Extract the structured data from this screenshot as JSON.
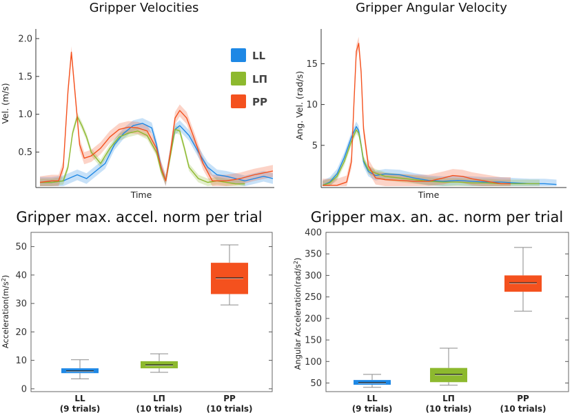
{
  "chart_data": [
    {
      "id": "vel",
      "type": "line",
      "title": "Gripper Velocities",
      "xlabel": "Time",
      "ylabel": "Vel. (m/s)",
      "ylim": [
        0.05,
        2.1
      ],
      "yticks": [
        "0.5",
        "1.0",
        "1.5",
        "2.0"
      ],
      "ytick_values": [
        0.5,
        1.0,
        1.5,
        2.0
      ],
      "xlim": [
        0,
        1
      ],
      "legend_position": "top-right",
      "series": [
        {
          "name": "LL",
          "color": "#1E88E5",
          "band": 0.07,
          "x": [
            0,
            0.05,
            0.1,
            0.13,
            0.16,
            0.2,
            0.24,
            0.28,
            0.32,
            0.36,
            0.4,
            0.44,
            0.48,
            0.5,
            0.52,
            0.54,
            0.56,
            0.58,
            0.6,
            0.64,
            0.68,
            0.72,
            0.76,
            0.8,
            0.84,
            0.88,
            0.92,
            0.96,
            1.0
          ],
          "y": [
            0.1,
            0.1,
            0.12,
            0.16,
            0.2,
            0.15,
            0.25,
            0.35,
            0.6,
            0.75,
            0.85,
            0.88,
            0.82,
            0.6,
            0.3,
            0.12,
            0.5,
            0.8,
            0.85,
            0.72,
            0.5,
            0.3,
            0.2,
            0.18,
            0.15,
            0.12,
            0.15,
            0.18,
            0.15
          ]
        },
        {
          "name": "LΠ",
          "color": "#8DB92E",
          "band": 0.05,
          "x": [
            0,
            0.05,
            0.1,
            0.12,
            0.14,
            0.16,
            0.18,
            0.2,
            0.22,
            0.26,
            0.3,
            0.34,
            0.38,
            0.42,
            0.46,
            0.5,
            0.52,
            0.54,
            0.56,
            0.58,
            0.6,
            0.62,
            0.64,
            0.68,
            0.72,
            0.76,
            0.8,
            0.84,
            0.88
          ],
          "y": [
            0.1,
            0.1,
            0.12,
            0.3,
            0.75,
            0.97,
            0.85,
            0.7,
            0.5,
            0.35,
            0.55,
            0.7,
            0.75,
            0.78,
            0.72,
            0.5,
            0.25,
            0.12,
            0.45,
            0.8,
            0.78,
            0.55,
            0.3,
            0.15,
            0.1,
            0.12,
            0.1,
            0.08,
            0.08
          ]
        },
        {
          "name": "PP",
          "color": "#F4511E",
          "band": 0.08,
          "x": [
            0,
            0.05,
            0.08,
            0.1,
            0.12,
            0.135,
            0.15,
            0.17,
            0.19,
            0.22,
            0.26,
            0.3,
            0.34,
            0.38,
            0.42,
            0.46,
            0.5,
            0.52,
            0.54,
            0.56,
            0.58,
            0.6,
            0.63,
            0.66,
            0.7,
            0.74,
            0.8,
            0.86,
            0.92,
            1.0
          ],
          "y": [
            0.1,
            0.12,
            0.12,
            0.3,
            1.3,
            1.82,
            1.3,
            0.6,
            0.42,
            0.45,
            0.55,
            0.7,
            0.8,
            0.83,
            0.82,
            0.78,
            0.55,
            0.3,
            0.12,
            0.5,
            0.95,
            1.05,
            0.95,
            0.7,
            0.35,
            0.12,
            0.12,
            0.15,
            0.2,
            0.25
          ]
        }
      ]
    },
    {
      "id": "angvel",
      "type": "line",
      "title": "Gripper Angular Velocity",
      "xlabel": "Time",
      "ylabel": "Ang. Vel. (rad/s)",
      "ylim": [
        0,
        19
      ],
      "yticks": [
        "5",
        "10",
        "15"
      ],
      "ytick_values": [
        5,
        10,
        15
      ],
      "xlim": [
        0,
        1
      ],
      "series": [
        {
          "name": "LL",
          "color": "#1E88E5",
          "band": 0.6,
          "x": [
            0,
            0.03,
            0.06,
            0.09,
            0.12,
            0.14,
            0.15,
            0.16,
            0.17,
            0.19,
            0.22,
            0.26,
            0.32,
            0.38,
            0.44,
            0.5,
            0.56,
            0.62,
            0.68,
            0.74,
            0.8,
            0.86,
            0.92,
            0.97
          ],
          "y": [
            0.1,
            0.5,
            1.5,
            3.5,
            6.0,
            7.3,
            6.8,
            5.0,
            3.0,
            1.8,
            1.3,
            1.5,
            1.4,
            1.0,
            0.7,
            0.6,
            0.7,
            0.6,
            0.5,
            0.5,
            0.4,
            0.3,
            0.3,
            0.2
          ]
        },
        {
          "name": "LΠ",
          "color": "#8DB92E",
          "band": 0.5,
          "x": [
            0,
            0.03,
            0.06,
            0.09,
            0.12,
            0.14,
            0.15,
            0.16,
            0.17,
            0.19,
            0.22,
            0.26,
            0.32,
            0.38,
            0.44,
            0.5,
            0.56,
            0.62,
            0.68,
            0.74,
            0.8,
            0.86,
            0.9
          ],
          "y": [
            0.1,
            0.4,
            1.2,
            3.0,
            5.5,
            6.9,
            6.5,
            5.0,
            3.2,
            2.0,
            1.6,
            1.2,
            1.0,
            0.8,
            0.6,
            0.5,
            0.5,
            0.4,
            0.4,
            0.3,
            0.3,
            0.3,
            0.3
          ]
        },
        {
          "name": "PP",
          "color": "#F4511E",
          "band": 0.8,
          "x": [
            0,
            0.06,
            0.1,
            0.12,
            0.13,
            0.14,
            0.15,
            0.16,
            0.17,
            0.19,
            0.22,
            0.26,
            0.32,
            0.38,
            0.44,
            0.5,
            0.54,
            0.58,
            0.62,
            0.66,
            0.7,
            0.74,
            0.78
          ],
          "y": [
            0.1,
            0.1,
            0.5,
            3.0,
            10.0,
            16.5,
            17.5,
            14.0,
            7.0,
            2.5,
            1.0,
            0.8,
            0.7,
            0.6,
            0.6,
            1.0,
            1.3,
            1.2,
            0.9,
            0.7,
            0.5,
            0.3,
            0.3
          ]
        }
      ]
    },
    {
      "id": "accel",
      "type": "box",
      "title": "Gripper max. accel. norm per trial",
      "ylabel": "Acceleration(m/s²)",
      "ylim": [
        -1,
        55
      ],
      "yticks": [
        "0",
        "10",
        "20",
        "30",
        "40",
        "50"
      ],
      "ytick_values": [
        0,
        10,
        20,
        30,
        40,
        50
      ],
      "categories": [
        {
          "name": "LL",
          "trials": "(9 trials)",
          "color": "#1E88E5",
          "min": 3.5,
          "q1": 5.5,
          "median": 6.3,
          "q3": 7.2,
          "max": 10.2
        },
        {
          "name": "LΠ",
          "trials": "(10 trials)",
          "color": "#8DB92E",
          "min": 5.8,
          "q1": 7.2,
          "median": 8.4,
          "q3": 9.7,
          "max": 12.3
        },
        {
          "name": "PP",
          "trials": "(10 trials)",
          "color": "#F4511E",
          "min": 29.5,
          "q1": 33.3,
          "median": 39.0,
          "q3": 44.3,
          "max": 50.6
        }
      ]
    },
    {
      "id": "angaccel",
      "type": "box",
      "title": "Gripper max. an. ac. norm per trial",
      "ylabel": "Angular Acceleration(rad/s²)",
      "ylim": [
        30,
        400
      ],
      "yticks": [
        "50",
        "100",
        "150",
        "200",
        "250",
        "300",
        "350",
        "400"
      ],
      "ytick_values": [
        50,
        100,
        150,
        200,
        250,
        300,
        350,
        400
      ],
      "categories": [
        {
          "name": "LL",
          "trials": "(9 trials)",
          "color": "#1E88E5",
          "min": 40,
          "q1": 46,
          "median": 51,
          "q3": 57,
          "max": 70
        },
        {
          "name": "LΠ",
          "trials": "(10 trials)",
          "color": "#8DB92E",
          "min": 45,
          "q1": 52,
          "median": 70,
          "q3": 85,
          "max": 131
        },
        {
          "name": "PP",
          "trials": "(10 trials)",
          "color": "#F4511E",
          "min": 217,
          "q1": 262,
          "median": 283,
          "q3": 300,
          "max": 365
        }
      ]
    }
  ]
}
